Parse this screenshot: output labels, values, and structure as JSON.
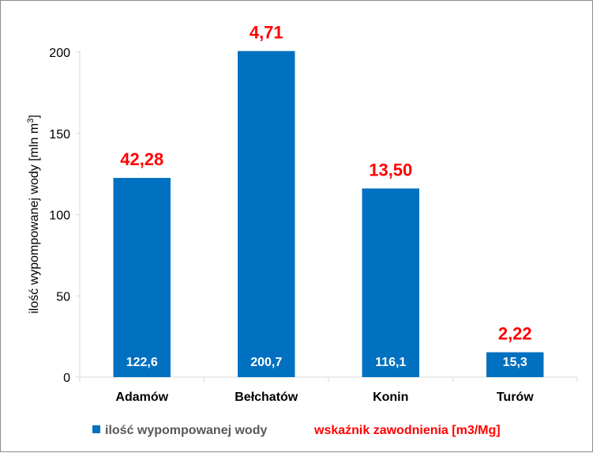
{
  "chart_data": {
    "type": "bar",
    "categories": [
      "Adamów",
      "Bełchatów",
      "Konin",
      "Turów"
    ],
    "series": [
      {
        "name": "ilość wypompowanej wody",
        "values": [
          122.6,
          200.7,
          116.1,
          15.3
        ],
        "value_labels": [
          "122,6",
          "200,7",
          "116,1",
          "15,3"
        ],
        "color": "#0070c0"
      },
      {
        "name": "wskaźnik zawodnienia [m3/Mg]",
        "values": [
          42.28,
          4.71,
          13.5,
          2.22
        ],
        "value_labels": [
          "42,28",
          "4,71",
          "13,50",
          "2,22"
        ],
        "color": "#ff0000"
      }
    ],
    "ylabel": "ilość wypompowanej wody [mln m",
    "ylabel_sup": "3",
    "ylabel_close": "]",
    "ylim": [
      0,
      200
    ],
    "yticks": [
      0,
      50,
      100,
      150,
      200
    ],
    "grid": false,
    "legend_position": "bottom"
  }
}
